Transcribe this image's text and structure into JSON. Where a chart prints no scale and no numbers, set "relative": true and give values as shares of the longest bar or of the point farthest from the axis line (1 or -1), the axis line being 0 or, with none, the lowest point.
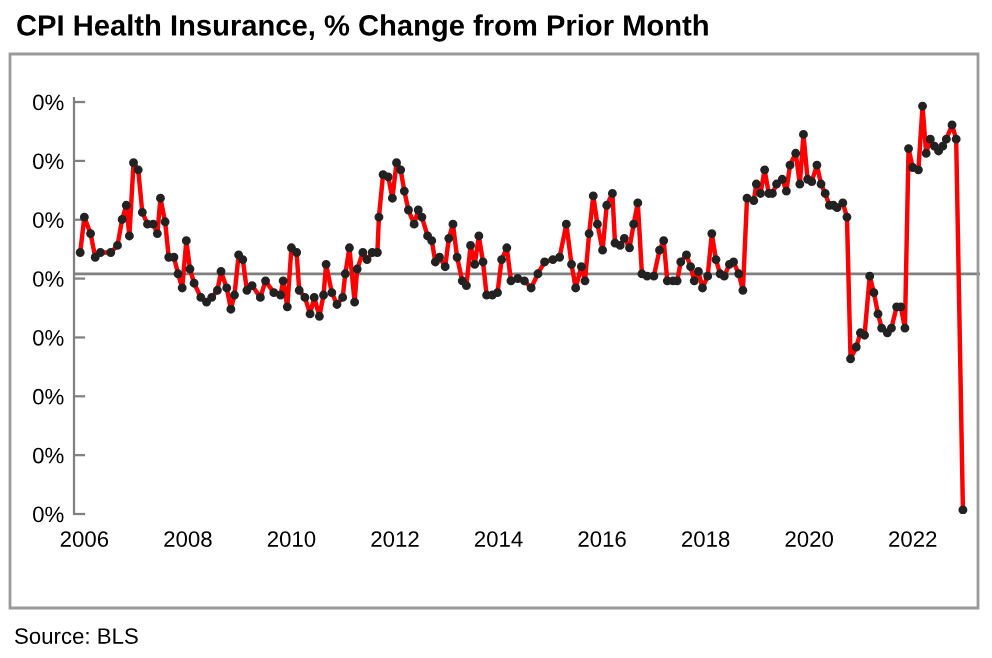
{
  "chart_data": {
    "type": "line",
    "title": "CPI Health Insurance, % Change from Prior Month",
    "annotations": [
      "Source: BLS",
      "0%",
      "0%",
      "0%",
      "0%",
      "0%",
      "0%",
      "0%",
      "0%"
    ],
    "x": [
      2005.92,
      2006.0,
      2006.12,
      2006.21,
      2006.31,
      2006.51,
      2006.64,
      2006.73,
      2006.81,
      2006.87,
      2006.95,
      2007.04,
      2007.12,
      2007.22,
      2007.33,
      2007.41,
      2007.47,
      2007.56,
      2007.63,
      2007.73,
      2007.81,
      2007.89,
      2007.97,
      2008.04,
      2008.12,
      2008.25,
      2008.36,
      2008.46,
      2008.57,
      2008.64,
      2008.75,
      2008.83,
      2008.9,
      2008.98,
      2009.06,
      2009.14,
      2009.24,
      2009.4,
      2009.5,
      2009.66,
      2009.79,
      2009.84,
      2009.92,
      2010.0,
      2010.1,
      2010.15,
      2010.26,
      2010.36,
      2010.44,
      2010.54,
      2010.62,
      2010.67,
      2010.78,
      2010.88,
      2010.99,
      2011.04,
      2011.12,
      2011.22,
      2011.27,
      2011.38,
      2011.46,
      2011.56,
      2011.66,
      2011.69,
      2011.77,
      2011.87,
      2011.95,
      2012.03,
      2012.11,
      2012.18,
      2012.26,
      2012.37,
      2012.45,
      2012.52,
      2012.63,
      2012.71,
      2012.78,
      2012.86,
      2012.97,
      2013.04,
      2013.12,
      2013.2,
      2013.3,
      2013.38,
      2013.46,
      2013.54,
      2013.62,
      2013.7,
      2013.77,
      2013.88,
      2013.98,
      2014.06,
      2014.16,
      2014.24,
      2014.37,
      2014.5,
      2014.63,
      2014.76,
      2014.89,
      2015.05,
      2015.18,
      2015.31,
      2015.41,
      2015.49,
      2015.6,
      2015.67,
      2015.75,
      2015.83,
      2015.91,
      2016.01,
      2016.09,
      2016.2,
      2016.25,
      2016.35,
      2016.43,
      2016.53,
      2016.61,
      2016.69,
      2016.77,
      2016.87,
      2017.0,
      2017.11,
      2017.19,
      2017.26,
      2017.37,
      2017.45,
      2017.52,
      2017.63,
      2017.71,
      2017.78,
      2017.86,
      2017.94,
      2018.04,
      2018.12,
      2018.2,
      2018.28,
      2018.36,
      2018.46,
      2018.54,
      2018.64,
      2018.72,
      2018.8,
      2018.93,
      2018.98,
      2019.06,
      2019.14,
      2019.22,
      2019.29,
      2019.37,
      2019.48,
      2019.56,
      2019.63,
      2019.74,
      2019.82,
      2019.89,
      2019.97,
      2020.05,
      2020.15,
      2020.23,
      2020.31,
      2020.39,
      2020.47,
      2020.54,
      2020.65,
      2020.73,
      2020.8,
      2020.91,
      2020.99,
      2021.07,
      2021.17,
      2021.25,
      2021.33,
      2021.4,
      2021.51,
      2021.59,
      2021.69,
      2021.77,
      2021.85,
      2021.92,
      2022.0,
      2022.11,
      2022.19,
      2022.26,
      2022.34,
      2022.42,
      2022.5,
      2022.58,
      2022.65,
      2022.76,
      2022.84,
      2022.97
    ],
    "series": [
      {
        "color": "#ff0000",
        "values": [
          0.09,
          0.24,
          0.17,
          0.07,
          0.09,
          0.09,
          0.12,
          0.23,
          0.29,
          0.16,
          0.47,
          0.44,
          0.26,
          0.21,
          0.21,
          0.17,
          0.32,
          0.22,
          0.07,
          0.07,
          0,
          -0.06,
          0.14,
          0.02,
          -0.04,
          -0.1,
          -0.12,
          -0.1,
          -0.07,
          0.01,
          -0.06,
          -0.15,
          -0.09,
          0.08,
          0.06,
          -0.07,
          -0.05,
          -0.1,
          -0.03,
          -0.08,
          -0.09,
          -0.03,
          -0.14,
          0.11,
          0.09,
          -0.07,
          -0.1,
          -0.17,
          -0.1,
          -0.18,
          -0.09,
          0.04,
          -0.08,
          -0.13,
          -0.1,
          0,
          0.11,
          -0.12,
          0.02,
          0.09,
          0.06,
          0.09,
          0.09,
          0.24,
          0.42,
          0.41,
          0.32,
          0.47,
          0.44,
          0.35,
          0.27,
          0.21,
          0.27,
          0.24,
          0.16,
          0.14,
          0.05,
          0.07,
          0.03,
          0.15,
          0.21,
          0.07,
          -0.03,
          -0.05,
          0.12,
          0.04,
          0.16,
          0.05,
          -0.09,
          -0.09,
          -0.08,
          0.06,
          0.11,
          -0.03,
          -0.02,
          -0.03,
          -0.06,
          0,
          0.05,
          0.06,
          0.07,
          0.21,
          0.04,
          -0.06,
          0.03,
          -0.03,
          0.17,
          0.33,
          0.21,
          0.1,
          0.29,
          0.34,
          0.13,
          0.12,
          0.15,
          0.11,
          0.21,
          0.3,
          0,
          -0.01,
          -0.01,
          0.1,
          0.14,
          -0.03,
          -0.03,
          -0.03,
          0.05,
          0.08,
          0.03,
          -0.03,
          0.01,
          -0.06,
          -0.01,
          0.17,
          0.06,
          0,
          -0.01,
          0.04,
          0.05,
          0,
          -0.07,
          0.32,
          0.31,
          0.38,
          0.34,
          0.44,
          0.34,
          0.34,
          0.38,
          0.4,
          0.35,
          0.46,
          0.51,
          0.38,
          0.59,
          0.4,
          0.39,
          0.46,
          0.38,
          0.34,
          0.29,
          0.29,
          0.28,
          0.3,
          0.24,
          -0.36,
          -0.31,
          -0.25,
          -0.26,
          -0.01,
          -0.08,
          -0.17,
          -0.23,
          -0.25,
          -0.23,
          -0.14,
          -0.14,
          -0.23,
          0.53,
          0.45,
          0.44,
          0.71,
          0.51,
          0.57,
          0.54,
          0.52,
          0.54,
          0.57,
          0.63,
          0.57,
          -1
        ]
      }
    ],
    "relative": true,
    "marker": "circle",
    "line_style": "solid",
    "grid": false,
    "legend": false,
    "xlim": [
      2005.8,
      2023.3
    ],
    "xticks": [
      2006,
      2008,
      2010,
      2012,
      2014,
      2016,
      2018,
      2020,
      2022
    ],
    "ref_lines": [
      {
        "axis": "y",
        "value": 0,
        "color": "#808080"
      }
    ]
  }
}
